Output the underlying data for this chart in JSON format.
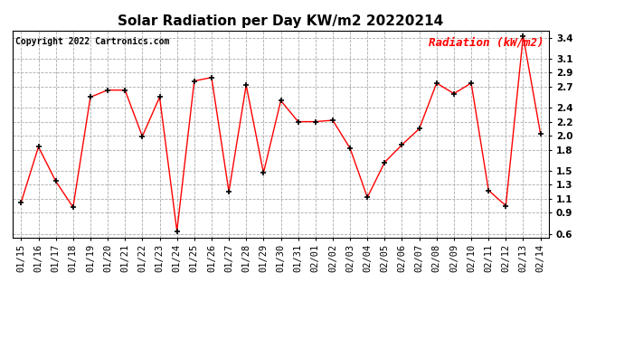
{
  "title": "Solar Radiation per Day KW/m2 20220214",
  "copyright_text": "Copyright 2022 Cartronics.com",
  "legend_label": "Radiation (kW/m2)",
  "dates": [
    "01/15",
    "01/16",
    "01/17",
    "01/18",
    "01/19",
    "01/20",
    "01/21",
    "01/22",
    "01/23",
    "01/24",
    "01/25",
    "01/26",
    "01/27",
    "01/28",
    "01/29",
    "01/30",
    "01/31",
    "02/01",
    "02/02",
    "02/03",
    "02/04",
    "02/05",
    "02/06",
    "02/07",
    "02/08",
    "02/09",
    "02/10",
    "02/11",
    "02/12",
    "02/13",
    "02/14"
  ],
  "values": [
    1.05,
    1.84,
    1.35,
    0.98,
    2.55,
    2.65,
    2.65,
    1.99,
    2.55,
    0.64,
    2.78,
    2.83,
    1.2,
    2.72,
    1.47,
    2.5,
    2.2,
    2.2,
    2.22,
    1.82,
    1.12,
    1.62,
    1.87,
    2.1,
    2.75,
    2.6,
    2.75,
    1.22,
    1.0,
    3.42,
    2.03
  ],
  "ylim": [
    0.55,
    3.5
  ],
  "yticks": [
    0.6,
    0.9,
    1.1,
    1.3,
    1.5,
    1.8,
    2.0,
    2.2,
    2.4,
    2.7,
    2.9,
    3.1,
    3.4
  ],
  "ytick_labels": [
    "0.6",
    "0.9",
    "1.1",
    "1.3",
    "1.5",
    "1.8",
    "2.0",
    "2.2",
    "2.4",
    "2.7",
    "2.9",
    "3.1",
    "3.4"
  ],
  "line_color": "red",
  "marker": "+",
  "marker_color": "black",
  "grid_color": "#aaaaaa",
  "bg_color": "white",
  "title_fontsize": 11,
  "copyright_fontsize": 7,
  "legend_fontsize": 9,
  "tick_fontsize": 7.5
}
